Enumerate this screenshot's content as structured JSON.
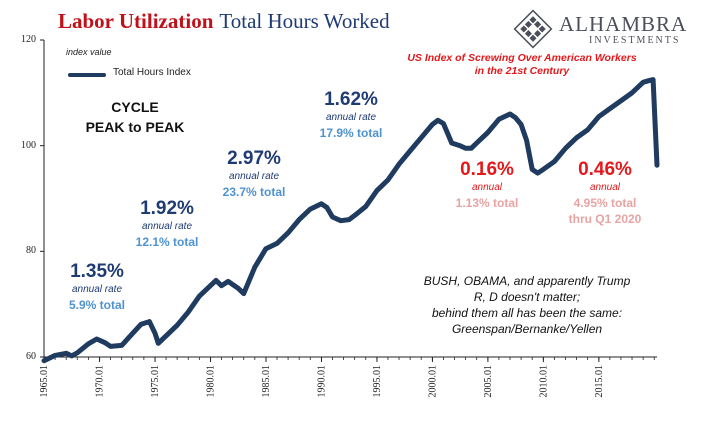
{
  "title": {
    "bold": "Labor Utilization",
    "rest": "Total Hours Worked"
  },
  "logo": {
    "name": "ALHAMBRA",
    "sub": "INVESTMENTS"
  },
  "unit_label": "index value",
  "cycle_label": {
    "line1": "CYCLE",
    "line2": "PEAK to PEAK"
  },
  "us_index_label": {
    "line1": "US Index of Screwing Over American Workers",
    "line2": "in the 21st Century"
  },
  "bush_note": {
    "line1": "BUSH, OBAMA, and apparently Trump",
    "line2": "R, D doesn't matter;",
    "line3": "behind them all has been the same:",
    "line4": "Greenspan/Bernanke/Yellen"
  },
  "annotations": [
    {
      "rate": "1.35%",
      "sub": "annual rate",
      "total": "5.9% total"
    },
    {
      "rate": "1.92%",
      "sub": "annual rate",
      "total": "12.1% total"
    },
    {
      "rate": "2.97%",
      "sub": "annual rate",
      "total": "23.7% total"
    },
    {
      "rate": "1.62%",
      "sub": "annual rate",
      "total": "17.9% total"
    },
    {
      "rate": "0.16%",
      "sub": "annual",
      "total": "1.13% total"
    },
    {
      "rate": "0.46%",
      "sub": "annual",
      "total": "4.95% total",
      "extra": "thru Q1 2020"
    }
  ],
  "colors": {
    "line": "#1f3b5f",
    "title_red": "#c0111a",
    "navy": "#1f3b73",
    "red": "#e3191c",
    "blue_total": "#4e93d0",
    "pink_total": "#e8a3a3"
  },
  "chart_data": {
    "type": "line",
    "title": "",
    "ylim": [
      60,
      120
    ],
    "xlim": [
      1965.0,
      2020.25
    ],
    "grid": false,
    "legend_position": "top-left",
    "yticks": [
      60,
      80,
      100,
      120
    ],
    "xticks": [
      "1965.01",
      "1970.01",
      "1975.01",
      "1980.01",
      "1985.01",
      "1990.01",
      "1995.01",
      "2000.01",
      "2005.01",
      "2010.01",
      "2015.01"
    ],
    "series": [
      {
        "name": "Total Hours Index",
        "x": [
          1965.0,
          1966.0,
          1967.0,
          1967.5,
          1968.0,
          1969.0,
          1969.75,
          1970.5,
          1971.0,
          1972.0,
          1973.0,
          1973.75,
          1974.5,
          1975.0,
          1975.3,
          1976.0,
          1977.0,
          1978.0,
          1979.0,
          1980.0,
          1980.5,
          1981.0,
          1981.6,
          1982.5,
          1983.0,
          1984.0,
          1985.0,
          1986.0,
          1987.0,
          1988.0,
          1989.0,
          1990.0,
          1990.5,
          1991.0,
          1991.75,
          1992.5,
          1993.0,
          1994.0,
          1995.0,
          1996.0,
          1997.0,
          1998.0,
          1999.0,
          2000.0,
          2000.5,
          2001.0,
          2001.75,
          2002.5,
          2003.0,
          2003.5,
          2004.0,
          2005.0,
          2006.0,
          2007.0,
          2007.5,
          2008.0,
          2008.5,
          2009.0,
          2009.5,
          2010.0,
          2011.0,
          2012.0,
          2013.0,
          2014.0,
          2015.0,
          2016.0,
          2017.0,
          2018.0,
          2019.0,
          2019.5,
          2019.9,
          2020.25
        ],
        "y": [
          59.3,
          60.3,
          60.7,
          60.2,
          60.8,
          62.5,
          63.4,
          62.7,
          62.0,
          62.2,
          64.5,
          66.2,
          66.7,
          64.5,
          62.6,
          64.0,
          66.0,
          68.5,
          71.5,
          73.5,
          74.5,
          73.5,
          74.3,
          73.0,
          72.0,
          77.0,
          80.5,
          81.5,
          83.5,
          86.0,
          88.0,
          89.0,
          88.3,
          86.5,
          85.8,
          86.0,
          86.8,
          88.5,
          91.5,
          93.5,
          96.5,
          99.0,
          101.5,
          104.0,
          104.8,
          104.2,
          100.5,
          100.0,
          99.5,
          99.5,
          100.5,
          102.5,
          105.0,
          106.0,
          105.3,
          104.0,
          101.0,
          95.5,
          94.8,
          95.5,
          97.0,
          99.5,
          101.5,
          103.0,
          105.5,
          107.0,
          108.5,
          110.0,
          112.0,
          112.3,
          112.5,
          96.3
        ]
      }
    ]
  }
}
